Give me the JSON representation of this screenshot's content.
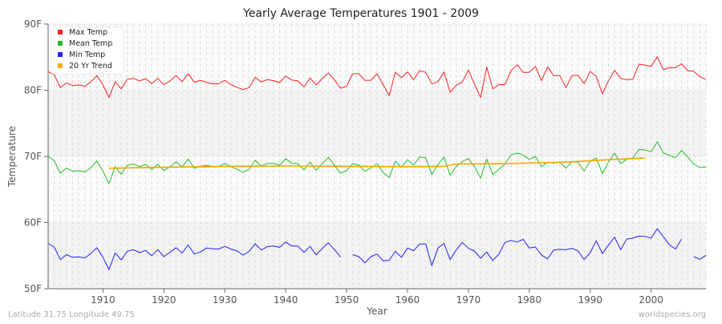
{
  "chart_data": {
    "type": "line",
    "title": "Yearly Average Temperatures 1901 - 2009",
    "xlabel": "Year",
    "ylabel": "Temperature",
    "xlim": [
      1901,
      2009
    ],
    "ylim": [
      50,
      90
    ],
    "x_ticks": [
      1910,
      1920,
      1930,
      1940,
      1950,
      1960,
      1970,
      1980,
      1990,
      2000
    ],
    "y_ticks": [
      {
        "value": 50,
        "label": "50F"
      },
      {
        "value": 60,
        "label": "60F"
      },
      {
        "value": 70,
        "label": "70F"
      },
      {
        "value": 80,
        "label": "80F"
      },
      {
        "value": 90,
        "label": "90F"
      }
    ],
    "grid": true,
    "legend_position": "top-left",
    "x_start": 1901,
    "series": [
      {
        "name": "Max Temp",
        "color": "#ff2020",
        "values": [
          82.8,
          82.35,
          80.4,
          81.1,
          80.7,
          80.8,
          80.6,
          81.25,
          82.2,
          80.8,
          78.9,
          81.3,
          80.2,
          81.65,
          81.8,
          81.4,
          81.75,
          81.0,
          81.8,
          80.85,
          81.4,
          82.2,
          81.3,
          82.5,
          81.2,
          81.5,
          81.2,
          80.97,
          80.97,
          81.5,
          80.85,
          80.45,
          80.1,
          80.4,
          81.95,
          81.25,
          81.6,
          81.45,
          81.15,
          82.15,
          81.55,
          81.4,
          80.5,
          81.85,
          80.8,
          81.75,
          82.6,
          81.6,
          80.3,
          80.6,
          82.5,
          82.5,
          81.5,
          81.5,
          82.5,
          80.85,
          79.2,
          82.7,
          81.9,
          82.75,
          81.6,
          82.95,
          82.7,
          80.95,
          81.3,
          82.75,
          79.7,
          80.75,
          81.25,
          83.05,
          80.9,
          78.9,
          83.5,
          80.2,
          80.85,
          80.85,
          82.95,
          83.85,
          82.7,
          82.7,
          83.6,
          81.45,
          83.5,
          82.2,
          82.2,
          80.4,
          82.2,
          82.25,
          81.0,
          82.85,
          82.1,
          79.45,
          81.45,
          83.0,
          81.8,
          81.6,
          81.65,
          83.95,
          83.8,
          83.6,
          85.05,
          83.1,
          83.4,
          83.4,
          84.0,
          82.97,
          82.85,
          82.05,
          81.65
        ]
      },
      {
        "name": "Mean Temp",
        "color": "#20c020",
        "values": [
          70.0,
          69.35,
          67.45,
          68.2,
          67.75,
          67.85,
          67.65,
          68.25,
          69.3,
          67.75,
          65.9,
          68.45,
          67.3,
          68.65,
          68.85,
          68.45,
          68.8,
          68.0,
          68.8,
          67.85,
          68.4,
          69.15,
          68.4,
          69.6,
          68.2,
          68.5,
          68.65,
          68.5,
          68.45,
          68.95,
          68.45,
          68.05,
          67.6,
          68.05,
          69.4,
          68.55,
          68.95,
          68.95,
          68.65,
          69.65,
          68.95,
          68.9,
          67.95,
          69.15,
          67.9,
          68.9,
          69.85,
          68.65,
          67.45,
          67.85,
          68.9,
          68.7,
          67.75,
          68.25,
          68.9,
          67.55,
          66.8,
          69.3,
          68.35,
          69.5,
          68.7,
          69.9,
          69.8,
          67.25,
          68.8,
          69.9,
          67.15,
          68.45,
          69.2,
          69.7,
          68.45,
          66.7,
          69.6,
          67.25,
          68.05,
          68.85,
          70.2,
          70.5,
          70.2,
          69.55,
          70.0,
          68.45,
          69.1,
          69.0,
          69.15,
          68.2,
          69.2,
          69.1,
          67.8,
          69.3,
          69.75,
          67.4,
          69.15,
          70.5,
          68.9,
          69.6,
          69.75,
          71.05,
          70.95,
          70.7,
          72.2,
          70.55,
          70.15,
          69.8,
          70.9,
          69.9,
          68.85,
          68.3,
          68.4
        ]
      },
      {
        "name": "Min Temp",
        "color": "#2020ff",
        "values": [
          56.85,
          56.3,
          54.4,
          55.15,
          54.75,
          54.8,
          54.65,
          55.3,
          56.2,
          54.75,
          52.9,
          55.4,
          54.35,
          55.65,
          55.9,
          55.45,
          55.8,
          55.0,
          55.9,
          54.85,
          55.5,
          56.2,
          55.4,
          56.6,
          55.25,
          55.55,
          56.15,
          56.05,
          56.0,
          56.4,
          56.0,
          55.7,
          55.1,
          55.65,
          56.8,
          55.85,
          56.35,
          56.45,
          56.25,
          57.05,
          56.45,
          56.45,
          55.5,
          56.4,
          55.1,
          56.1,
          56.95,
          55.9,
          54.8,
          null,
          55.15,
          54.85,
          53.9,
          54.85,
          55.25,
          54.2,
          54.3,
          55.65,
          54.75,
          56.15,
          55.75,
          56.75,
          56.75,
          53.5,
          56.15,
          56.85,
          54.4,
          55.85,
          57.0,
          56.1,
          55.7,
          54.6,
          55.55,
          54.25,
          55.25,
          57.0,
          57.3,
          57.05,
          57.45,
          56.15,
          56.3,
          55.1,
          54.5,
          55.85,
          55.95,
          55.9,
          56.1,
          55.7,
          54.4,
          55.45,
          57.25,
          55.3,
          56.6,
          57.8,
          55.9,
          57.5,
          57.65,
          57.95,
          57.9,
          57.65,
          59.05,
          57.85,
          56.65,
          56.0,
          57.5,
          null,
          54.85,
          54.45,
          55.05
        ]
      },
      {
        "name": "20 Yr Trend",
        "color": "#ffa500",
        "points": [
          [
            1911,
            68.2
          ],
          [
            1920,
            68.35
          ],
          [
            1930,
            68.5
          ],
          [
            1940,
            68.55
          ],
          [
            1950,
            68.5
          ],
          [
            1960,
            68.45
          ],
          [
            1966,
            68.5
          ],
          [
            1968,
            68.85
          ],
          [
            1975,
            68.9
          ],
          [
            1980,
            69.0
          ],
          [
            1985,
            69.1
          ],
          [
            1990,
            69.35
          ],
          [
            1995,
            69.6
          ],
          [
            1999,
            69.75
          ]
        ]
      }
    ]
  },
  "footer": {
    "location": "Latitude 31.75 Longitude 49.75",
    "source": "worldspecies.org"
  }
}
